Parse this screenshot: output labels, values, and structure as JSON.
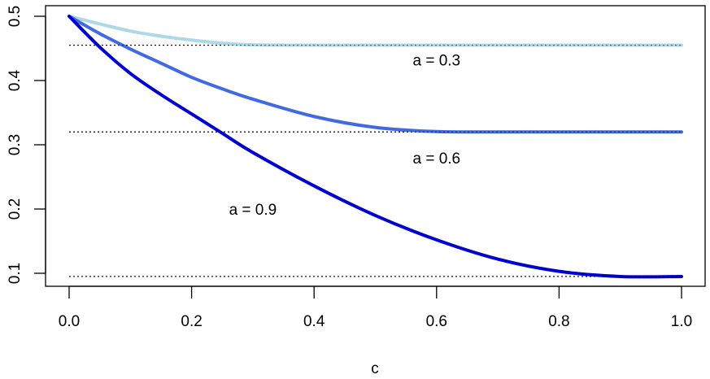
{
  "chart_data": {
    "type": "line",
    "title": "",
    "xlabel": "c",
    "ylabel": "",
    "xlim": [
      0.0,
      1.0
    ],
    "ylim": [
      0.09,
      0.5
    ],
    "grid": false,
    "legend": null,
    "x_ticks": [
      "0.0",
      "0.2",
      "0.4",
      "0.6",
      "0.8",
      "1.0"
    ],
    "y_ticks": [
      "0.1",
      "0.2",
      "0.3",
      "0.4",
      "0.5"
    ],
    "x": [
      0.0,
      0.05,
      0.1,
      0.15,
      0.2,
      0.25,
      0.3,
      0.4,
      0.5,
      0.6,
      0.7,
      0.8,
      0.9,
      1.0
    ],
    "series": [
      {
        "name": "a = 0.3",
        "color": "#ADD8E6",
        "values": [
          0.5,
          0.488,
          0.477,
          0.469,
          0.463,
          0.458,
          0.4555,
          0.455,
          0.455,
          0.455,
          0.455,
          0.455,
          0.455,
          0.455
        ]
      },
      {
        "name": "a = 0.6",
        "color": "#4169E1",
        "values": [
          0.5,
          0.473,
          0.449,
          0.427,
          0.405,
          0.387,
          0.371,
          0.344,
          0.327,
          0.3205,
          0.32,
          0.32,
          0.32,
          0.32
        ]
      },
      {
        "name": "a = 0.9",
        "color": "#0000CD",
        "values": [
          0.5,
          0.452,
          0.411,
          0.378,
          0.348,
          0.318,
          0.288,
          0.236,
          0.19,
          0.152,
          0.122,
          0.103,
          0.095,
          0.095
        ]
      }
    ],
    "reference_lines": [
      {
        "value": 0.455,
        "style": "dotted",
        "color": "#000000"
      },
      {
        "value": 0.32,
        "style": "dotted",
        "color": "#000000"
      },
      {
        "value": 0.095,
        "style": "dotted",
        "color": "#000000"
      }
    ],
    "annotations": [
      {
        "text": "a = 0.3",
        "x": 0.6,
        "y": 0.432
      },
      {
        "text": "a = 0.6",
        "x": 0.6,
        "y": 0.28
      },
      {
        "text": "a = 0.9",
        "x": 0.3,
        "y": 0.2
      }
    ]
  }
}
